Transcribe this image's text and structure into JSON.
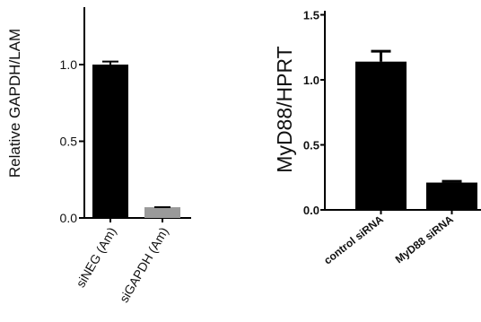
{
  "chart_data": [
    {
      "type": "bar",
      "ylabel": "Relative GAPDH/LAM",
      "xlabel": "",
      "title": "",
      "categories": [
        "siNEG (Am)",
        "siGAPDH (Am)"
      ],
      "values": [
        1.0,
        0.07
      ],
      "errors": [
        0.02,
        0.0
      ],
      "colors": [
        "#000000",
        "#9a9a9a"
      ],
      "ylim": [
        0,
        1.4
      ],
      "yticks": [
        0.0,
        0.5,
        1.0
      ],
      "ytick_labels": [
        "0.0",
        "0.5",
        "1.0"
      ]
    },
    {
      "type": "bar",
      "ylabel": "MyD88/HPRT",
      "xlabel": "",
      "title": "",
      "categories": [
        "control siRNA",
        "MyD88 siRNA"
      ],
      "values": [
        1.14,
        0.21
      ],
      "errors": [
        0.08,
        0.01
      ],
      "colors": [
        "#000000",
        "#000000"
      ],
      "ylim": [
        0,
        1.5
      ],
      "yticks": [
        0.0,
        0.5,
        1.0,
        1.5
      ],
      "ytick_labels": [
        "0.0",
        "0.5",
        "1.0",
        "1.5"
      ]
    }
  ]
}
